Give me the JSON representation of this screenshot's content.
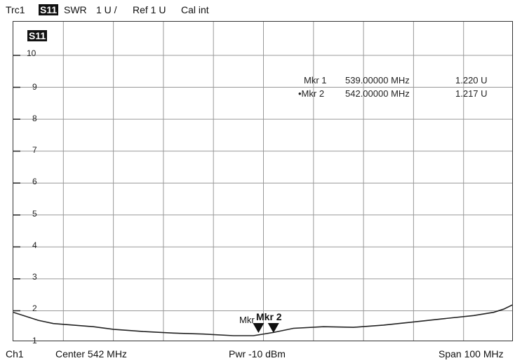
{
  "header": {
    "trace": "Trc1",
    "param": "S11",
    "format": "SWR",
    "scale": "1 U /",
    "ref": "Ref 1 U",
    "cal": "Cal int"
  },
  "plot": {
    "trace_label": "S11",
    "y_ticks": [
      "10",
      "9",
      "8",
      "7",
      "6",
      "5",
      "4",
      "3",
      "2",
      "1"
    ],
    "markers": [
      {
        "label": "Mkr 1",
        "freq": "539.00000 MHz",
        "value": "1.220 U"
      },
      {
        "label": "•Mkr 2",
        "freq": "542.00000 MHz",
        "value": "1.217 U"
      }
    ],
    "marker_annot_1": "Mkr",
    "marker_annot_2": "Mkr 2"
  },
  "footer": {
    "channel": "Ch1",
    "center": "Center  542 MHz",
    "power": "Pwr  -10 dBm",
    "span": "Span  100 MHz"
  },
  "chart_data": {
    "type": "line",
    "ylim": [
      1,
      10
    ],
    "x": [
      0,
      2,
      5,
      8,
      12,
      16,
      20,
      26,
      32,
      38,
      44,
      48,
      52,
      56,
      62,
      68,
      74,
      80,
      86,
      92,
      96,
      98,
      100
    ],
    "series": [
      {
        "values": [
          1.95,
          1.85,
          1.7,
          1.6,
          1.55,
          1.5,
          1.42,
          1.35,
          1.3,
          1.27,
          1.22,
          1.22,
          1.32,
          1.45,
          1.5,
          1.48,
          1.55,
          1.65,
          1.75,
          1.85,
          1.95,
          2.05,
          2.2
        ]
      }
    ],
    "markers_x": [
      49,
      52
    ]
  }
}
